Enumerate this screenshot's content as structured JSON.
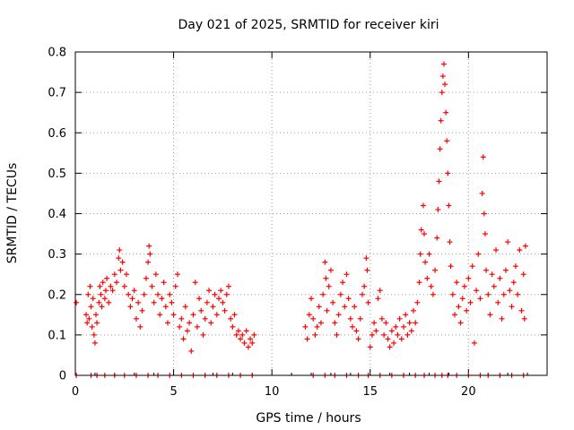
{
  "chart_data": {
    "type": "scatter",
    "title": "Day 021 of 2025, SRMTID for receiver kiri",
    "xlabel": "GPS time / hours",
    "ylabel": "SRMTID / TECUs",
    "xlim": [
      0,
      24
    ],
    "ylim": [
      0,
      0.8
    ],
    "xticks": [
      0,
      5,
      10,
      15,
      20
    ],
    "yticks": [
      0,
      0.1,
      0.2,
      0.3,
      0.4,
      0.5,
      0.6,
      0.7,
      0.8
    ],
    "xtick_labels": [
      "0",
      "5",
      "10",
      "15",
      "20"
    ],
    "ytick_labels": [
      "0",
      "0.1",
      "0.2",
      "0.3",
      "0.4",
      "0.5",
      "0.6",
      "0.7",
      "0.8"
    ],
    "grid": true,
    "marker": "+",
    "color": "#ff0000",
    "gap_hours": [
      9.3,
      11.5
    ],
    "series": [
      {
        "name": "SRMTID",
        "points": [
          [
            0.05,
            0.18
          ],
          [
            0.55,
            0.15
          ],
          [
            0.6,
            0.13
          ],
          [
            0.65,
            0.2
          ],
          [
            0.7,
            0.14
          ],
          [
            0.75,
            0.22
          ],
          [
            0.8,
            0.17
          ],
          [
            0.85,
            0.12
          ],
          [
            0.9,
            0.19
          ],
          [
            0.95,
            0.1
          ],
          [
            1.0,
            0.08
          ],
          [
            1.05,
            0.15
          ],
          [
            1.1,
            0.13
          ],
          [
            1.2,
            0.18
          ],
          [
            1.25,
            0.22
          ],
          [
            1.3,
            0.2
          ],
          [
            1.35,
            0.17
          ],
          [
            1.4,
            0.23
          ],
          [
            1.5,
            0.19
          ],
          [
            1.55,
            0.21
          ],
          [
            1.6,
            0.24
          ],
          [
            1.7,
            0.18
          ],
          [
            1.8,
            0.22
          ],
          [
            1.9,
            0.21
          ],
          [
            2.0,
            0.25
          ],
          [
            2.1,
            0.23
          ],
          [
            2.2,
            0.29
          ],
          [
            2.25,
            0.31
          ],
          [
            2.3,
            0.26
          ],
          [
            2.4,
            0.28
          ],
          [
            2.5,
            0.22
          ],
          [
            2.6,
            0.25
          ],
          [
            2.7,
            0.2
          ],
          [
            2.8,
            0.17
          ],
          [
            2.9,
            0.19
          ],
          [
            3.0,
            0.21
          ],
          [
            3.1,
            0.14
          ],
          [
            3.2,
            0.18
          ],
          [
            3.3,
            0.12
          ],
          [
            3.4,
            0.16
          ],
          [
            3.5,
            0.2
          ],
          [
            3.6,
            0.24
          ],
          [
            3.7,
            0.28
          ],
          [
            3.75,
            0.32
          ],
          [
            3.8,
            0.3
          ],
          [
            3.9,
            0.22
          ],
          [
            4.0,
            0.18
          ],
          [
            4.1,
            0.25
          ],
          [
            4.2,
            0.2
          ],
          [
            4.3,
            0.15
          ],
          [
            4.4,
            0.19
          ],
          [
            4.5,
            0.23
          ],
          [
            4.6,
            0.17
          ],
          [
            4.7,
            0.13
          ],
          [
            4.8,
            0.2
          ],
          [
            4.9,
            0.18
          ],
          [
            5.0,
            0.15
          ],
          [
            5.1,
            0.22
          ],
          [
            5.2,
            0.25
          ],
          [
            5.3,
            0.12
          ],
          [
            5.4,
            0.14
          ],
          [
            5.5,
            0.09
          ],
          [
            5.6,
            0.17
          ],
          [
            5.7,
            0.11
          ],
          [
            5.8,
            0.13
          ],
          [
            5.9,
            0.06
          ],
          [
            6.0,
            0.15
          ],
          [
            6.1,
            0.23
          ],
          [
            6.2,
            0.12
          ],
          [
            6.3,
            0.19
          ],
          [
            6.4,
            0.16
          ],
          [
            6.5,
            0.1
          ],
          [
            6.6,
            0.14
          ],
          [
            6.7,
            0.18
          ],
          [
            6.8,
            0.21
          ],
          [
            6.9,
            0.13
          ],
          [
            7.0,
            0.17
          ],
          [
            7.1,
            0.2
          ],
          [
            7.2,
            0.15
          ],
          [
            7.3,
            0.19
          ],
          [
            7.4,
            0.21
          ],
          [
            7.5,
            0.18
          ],
          [
            7.6,
            0.16
          ],
          [
            7.7,
            0.2
          ],
          [
            7.8,
            0.22
          ],
          [
            7.9,
            0.14
          ],
          [
            8.0,
            0.12
          ],
          [
            8.1,
            0.15
          ],
          [
            8.2,
            0.1
          ],
          [
            8.3,
            0.11
          ],
          [
            8.4,
            0.09
          ],
          [
            8.5,
            0.1
          ],
          [
            8.6,
            0.08
          ],
          [
            8.7,
            0.11
          ],
          [
            8.8,
            0.07
          ],
          [
            8.9,
            0.09
          ],
          [
            9.0,
            0.08
          ],
          [
            9.1,
            0.1
          ],
          [
            11.7,
            0.12
          ],
          [
            11.8,
            0.09
          ],
          [
            11.9,
            0.15
          ],
          [
            12.0,
            0.19
          ],
          [
            12.1,
            0.14
          ],
          [
            12.2,
            0.1
          ],
          [
            12.3,
            0.12
          ],
          [
            12.4,
            0.17
          ],
          [
            12.5,
            0.13
          ],
          [
            12.6,
            0.2
          ],
          [
            12.7,
            0.28
          ],
          [
            12.75,
            0.24
          ],
          [
            12.8,
            0.16
          ],
          [
            12.9,
            0.22
          ],
          [
            13.0,
            0.26
          ],
          [
            13.1,
            0.18
          ],
          [
            13.2,
            0.13
          ],
          [
            13.3,
            0.1
          ],
          [
            13.4,
            0.15
          ],
          [
            13.5,
            0.2
          ],
          [
            13.6,
            0.23
          ],
          [
            13.7,
            0.17
          ],
          [
            13.8,
            0.25
          ],
          [
            13.9,
            0.19
          ],
          [
            14.0,
            0.14
          ],
          [
            14.1,
            0.12
          ],
          [
            14.2,
            0.17
          ],
          [
            14.3,
            0.11
          ],
          [
            14.4,
            0.09
          ],
          [
            14.5,
            0.14
          ],
          [
            14.6,
            0.2
          ],
          [
            14.7,
            0.22
          ],
          [
            14.8,
            0.29
          ],
          [
            14.85,
            0.26
          ],
          [
            14.9,
            0.18
          ],
          [
            15.0,
            0.07
          ],
          [
            15.1,
            0.1
          ],
          [
            15.2,
            0.13
          ],
          [
            15.3,
            0.11
          ],
          [
            15.4,
            0.19
          ],
          [
            15.5,
            0.21
          ],
          [
            15.6,
            0.14
          ],
          [
            15.7,
            0.1
          ],
          [
            15.8,
            0.13
          ],
          [
            15.9,
            0.09
          ],
          [
            16.0,
            0.07
          ],
          [
            16.1,
            0.11
          ],
          [
            16.2,
            0.08
          ],
          [
            16.3,
            0.12
          ],
          [
            16.4,
            0.1
          ],
          [
            16.5,
            0.14
          ],
          [
            16.6,
            0.09
          ],
          [
            16.7,
            0.12
          ],
          [
            16.8,
            0.15
          ],
          [
            16.9,
            0.1
          ],
          [
            17.0,
            0.13
          ],
          [
            17.1,
            0.11
          ],
          [
            17.2,
            0.16
          ],
          [
            17.3,
            0.13
          ],
          [
            17.4,
            0.18
          ],
          [
            17.5,
            0.23
          ],
          [
            17.55,
            0.3
          ],
          [
            17.6,
            0.36
          ],
          [
            17.7,
            0.42
          ],
          [
            17.75,
            0.35
          ],
          [
            17.8,
            0.28
          ],
          [
            17.9,
            0.24
          ],
          [
            18.0,
            0.3
          ],
          [
            18.1,
            0.22
          ],
          [
            18.2,
            0.2
          ],
          [
            18.3,
            0.26
          ],
          [
            18.4,
            0.34
          ],
          [
            18.45,
            0.41
          ],
          [
            18.5,
            0.48
          ],
          [
            18.55,
            0.56
          ],
          [
            18.6,
            0.63
          ],
          [
            18.65,
            0.7
          ],
          [
            18.7,
            0.74
          ],
          [
            18.75,
            0.77
          ],
          [
            18.8,
            0.72
          ],
          [
            18.85,
            0.65
          ],
          [
            18.9,
            0.58
          ],
          [
            18.95,
            0.5
          ],
          [
            19.0,
            0.42
          ],
          [
            19.05,
            0.33
          ],
          [
            19.1,
            0.27
          ],
          [
            19.2,
            0.2
          ],
          [
            19.3,
            0.15
          ],
          [
            19.4,
            0.23
          ],
          [
            19.5,
            0.17
          ],
          [
            19.6,
            0.13
          ],
          [
            19.7,
            0.19
          ],
          [
            19.8,
            0.22
          ],
          [
            19.9,
            0.16
          ],
          [
            20.0,
            0.24
          ],
          [
            20.1,
            0.18
          ],
          [
            20.2,
            0.27
          ],
          [
            20.3,
            0.08
          ],
          [
            20.4,
            0.21
          ],
          [
            20.5,
            0.3
          ],
          [
            20.6,
            0.19
          ],
          [
            20.7,
            0.45
          ],
          [
            20.75,
            0.54
          ],
          [
            20.8,
            0.4
          ],
          [
            20.85,
            0.35
          ],
          [
            20.9,
            0.26
          ],
          [
            21.0,
            0.2
          ],
          [
            21.1,
            0.15
          ],
          [
            21.2,
            0.25
          ],
          [
            21.3,
            0.22
          ],
          [
            21.4,
            0.31
          ],
          [
            21.5,
            0.18
          ],
          [
            21.6,
            0.24
          ],
          [
            21.7,
            0.14
          ],
          [
            21.8,
            0.2
          ],
          [
            21.9,
            0.26
          ],
          [
            22.0,
            0.33
          ],
          [
            22.1,
            0.21
          ],
          [
            22.2,
            0.17
          ],
          [
            22.3,
            0.23
          ],
          [
            22.4,
            0.27
          ],
          [
            22.5,
            0.2
          ],
          [
            22.6,
            0.31
          ],
          [
            22.7,
            0.16
          ],
          [
            22.8,
            0.25
          ],
          [
            22.85,
            0.14
          ],
          [
            22.9,
            0.32
          ]
        ]
      }
    ]
  }
}
